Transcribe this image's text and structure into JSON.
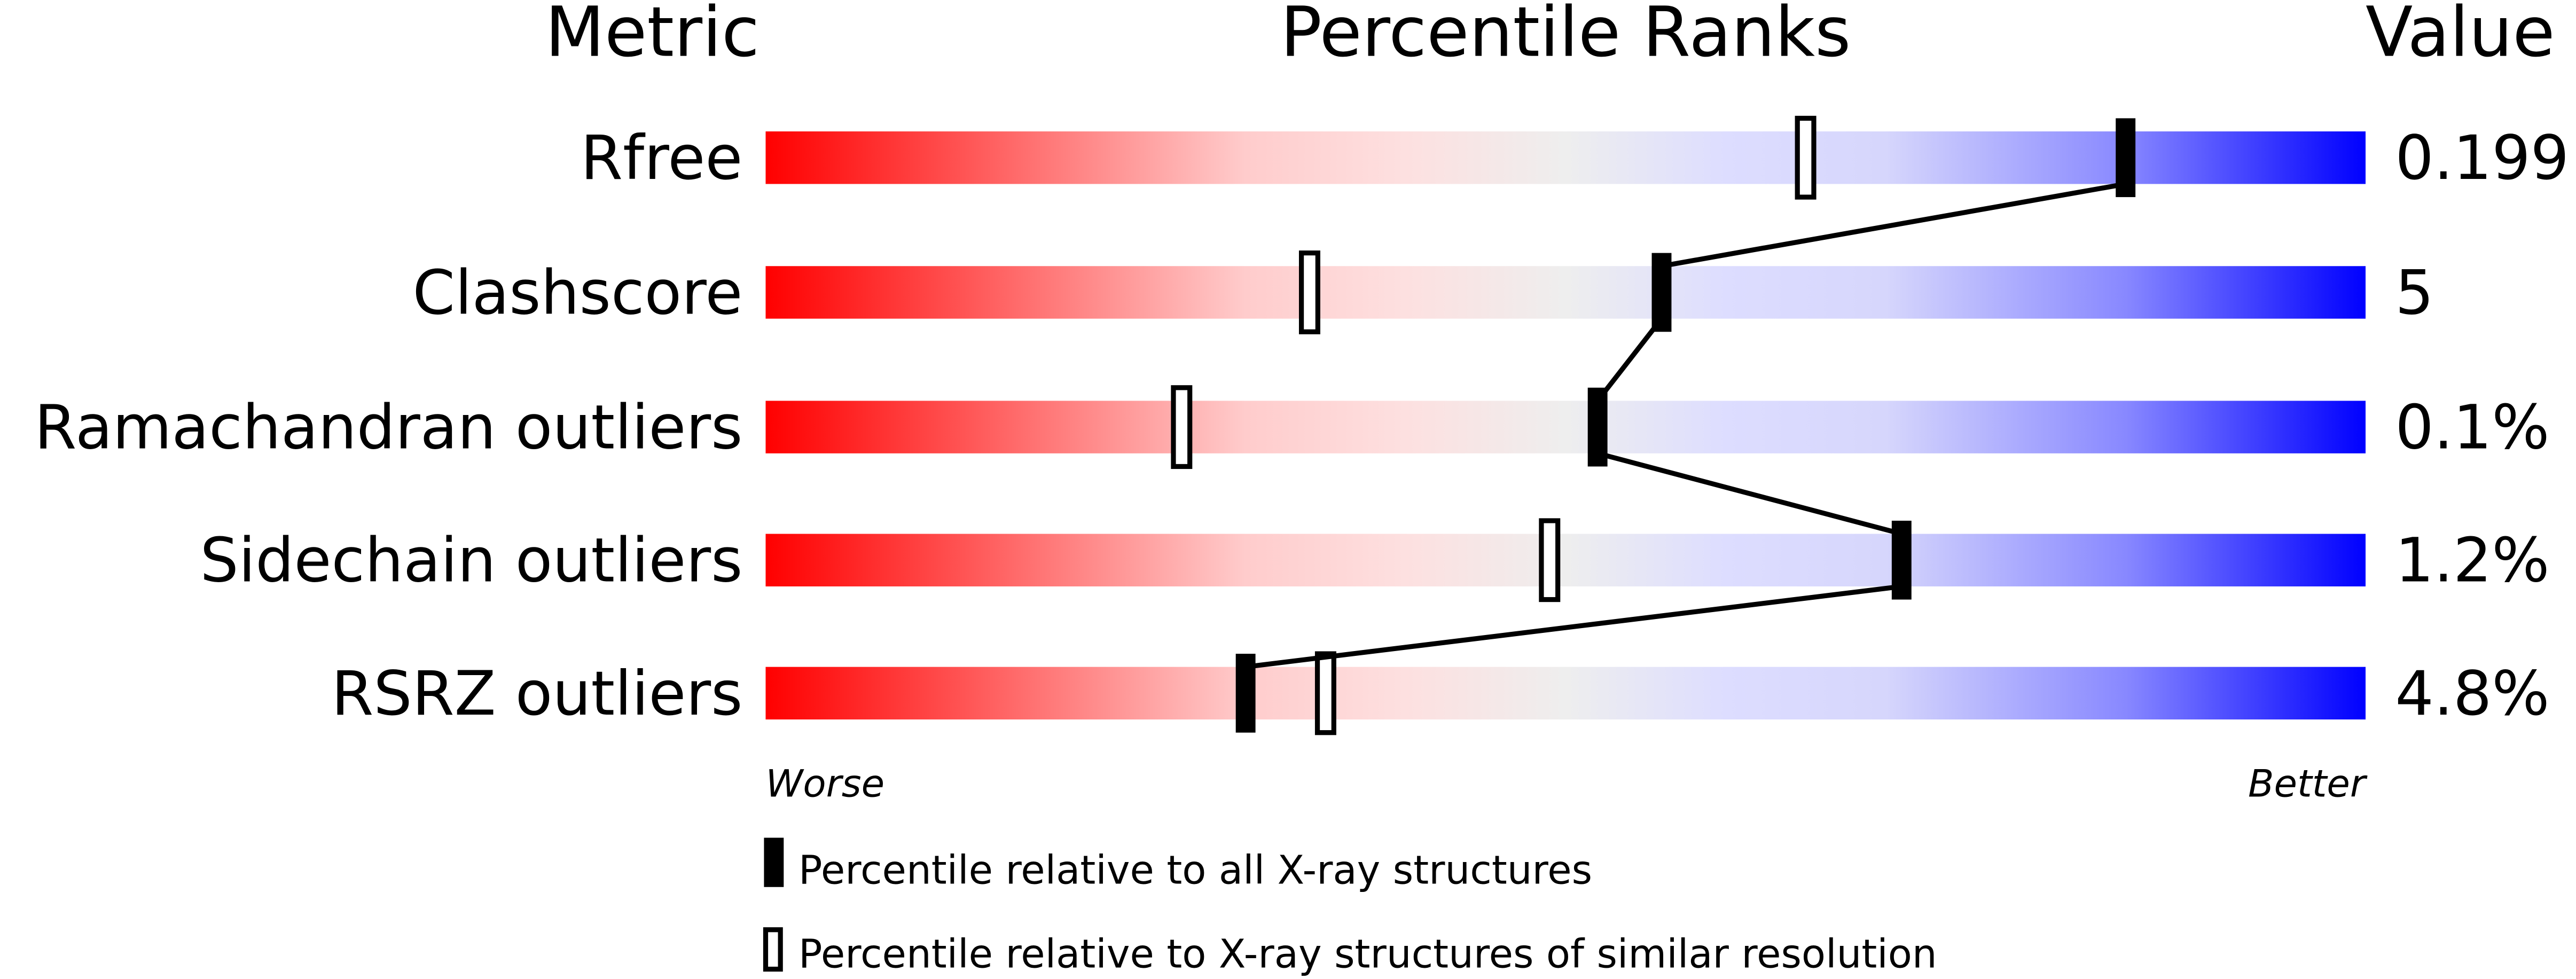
{
  "chart_data": {
    "type": "percentile-slider",
    "headers": {
      "metric": "Metric",
      "ranks": "Percentile Ranks",
      "value": "Value"
    },
    "axis": {
      "min": 0,
      "max": 100,
      "left_label": "Worse",
      "right_label": "Better"
    },
    "rows": [
      {
        "metric": "Rfree",
        "value": "0.199",
        "percentile_all": 85,
        "percentile_similar": 65
      },
      {
        "metric": "Clashscore",
        "value": "5",
        "percentile_all": 56,
        "percentile_similar": 34
      },
      {
        "metric": "Ramachandran outliers",
        "value": "0.1%",
        "percentile_all": 52,
        "percentile_similar": 26
      },
      {
        "metric": "Sidechain outliers",
        "value": "1.2%",
        "percentile_all": 71,
        "percentile_similar": 49
      },
      {
        "metric": "RSRZ outliers",
        "value": "4.8%",
        "percentile_all": 30,
        "percentile_similar": 35
      }
    ],
    "legend": [
      {
        "marker": "filled",
        "label": "Percentile relative to all X-ray structures"
      },
      {
        "marker": "open",
        "label": "Percentile relative to X-ray structures of similar resolution"
      }
    ],
    "colors": {
      "worse": "#ff0000",
      "middle": "#eeeeee",
      "better": "#0000ff",
      "marker": "#000000"
    }
  }
}
